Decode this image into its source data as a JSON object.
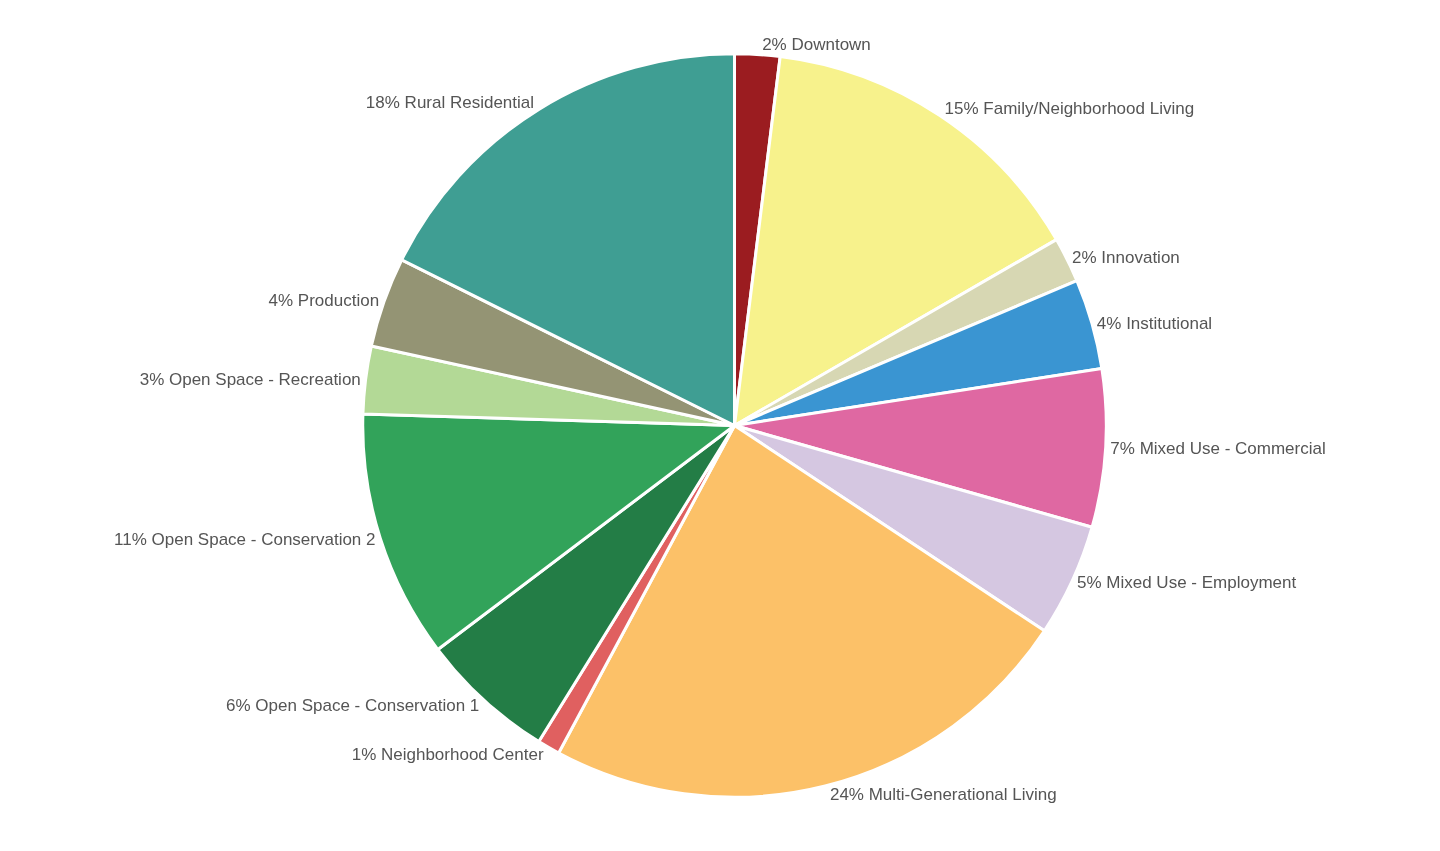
{
  "chart_data": {
    "type": "pie",
    "categories": [
      "Downtown",
      "Family/Neighborhood Living",
      "Innovation",
      "Institutional",
      "Mixed Use - Commercial",
      "Mixed Use - Employment",
      "Multi-Generational Living",
      "Neighborhood Center",
      "Open Space - Conservation 1",
      "Open Space - Conservation 2",
      "Open Space - Recreation",
      "Production",
      "Rural Residential"
    ],
    "values": [
      2,
      15,
      2,
      4,
      7,
      5,
      24,
      1,
      6,
      11,
      3,
      4,
      18
    ],
    "value_labels": [
      "2%",
      "15%",
      "2%",
      "4%",
      "7%",
      "5%",
      "24%",
      "1%",
      "6%",
      "11%",
      "3%",
      "4%",
      "18%"
    ],
    "colors": [
      "#9b1c20",
      "#f7f28c",
      "#d7d7b3",
      "#3a95d2",
      "#df68a2",
      "#d5c7e1",
      "#fcc168",
      "#e06060",
      "#237d46",
      "#32a35a",
      "#b3d996",
      "#949474",
      "#3f9e93"
    ],
    "legend": false
  }
}
